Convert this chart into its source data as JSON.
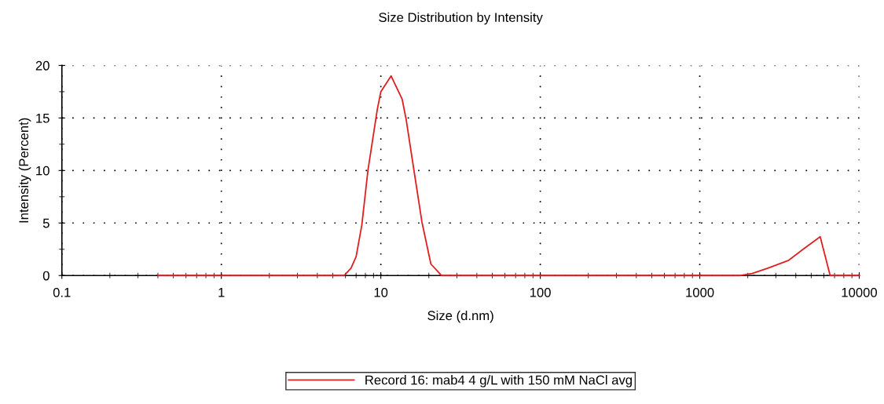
{
  "chart_data": {
    "type": "line",
    "title": "Size Distribution by Intensity",
    "xlabel": "Size (d.nm)",
    "ylabel": "Intensity (Percent)",
    "log": "x",
    "xlim": [
      0.1,
      10000
    ],
    "xticks": [
      0.1,
      1,
      10,
      100,
      1000,
      10000
    ],
    "ylim": [
      0,
      20
    ],
    "yticks": [
      0,
      5,
      10,
      15,
      20
    ],
    "grid": true,
    "legend": "bottom",
    "marker": "none",
    "line_style": "solid",
    "series": [
      {
        "name": "Record 16: mab4 4 g/L with 150 mM NaCl avg",
        "color": "#e02020",
        "x": [
          0.4,
          5.9,
          6.5,
          7.0,
          7.6,
          8.3,
          8.9,
          9.5,
          10.0,
          11.6,
          13.6,
          14.4,
          16.1,
          18.1,
          20.6,
          24.0,
          1800,
          2130,
          2670,
          3610,
          4530,
          5690,
          6570,
          10000
        ],
        "values": [
          0,
          0,
          0.7,
          1.8,
          4.8,
          10.0,
          13.0,
          15.8,
          17.5,
          19.0,
          16.8,
          14.9,
          10.1,
          5.1,
          1.1,
          0,
          0,
          0.2,
          0.7,
          1.45,
          2.6,
          3.7,
          0,
          0
        ]
      }
    ]
  }
}
